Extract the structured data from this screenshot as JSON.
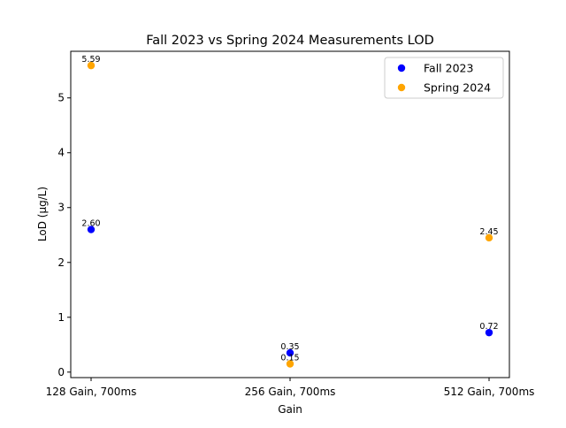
{
  "chart_data": {
    "type": "scatter",
    "title": "Fall 2023 vs Spring 2024 Measurements LOD",
    "xlabel": "Gain",
    "ylabel": "LoD (µg/L)",
    "categories": [
      "128 Gain, 700ms",
      "256 Gain, 700ms",
      "512 Gain, 700ms"
    ],
    "ylim": [
      -0.1,
      5.85
    ],
    "yticks": [
      0,
      1,
      2,
      3,
      4,
      5
    ],
    "grid": false,
    "legend_position": "top-right",
    "series": [
      {
        "name": "Fall 2023",
        "color": "#0000ff",
        "values": [
          2.6,
          0.35,
          0.72
        ],
        "labels": [
          "2.60",
          "0.35",
          "0.72"
        ]
      },
      {
        "name": "Spring 2024",
        "color": "#ffa500",
        "values": [
          5.59,
          0.15,
          2.45
        ],
        "labels": [
          "5.59",
          "0.15",
          "2.45"
        ]
      }
    ]
  }
}
